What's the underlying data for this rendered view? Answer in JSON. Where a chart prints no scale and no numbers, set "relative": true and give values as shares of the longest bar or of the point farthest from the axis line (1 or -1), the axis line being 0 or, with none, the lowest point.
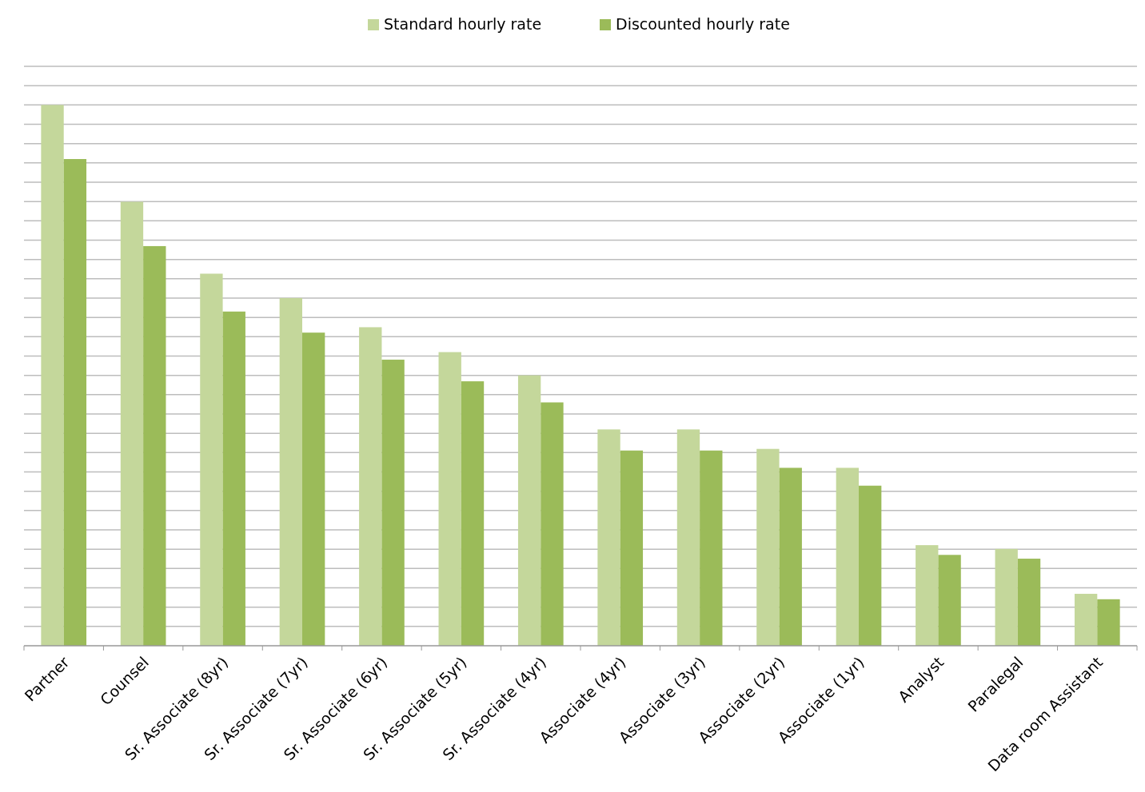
{
  "chart_data": {
    "type": "bar",
    "relative": true,
    "grid": "y",
    "legend": "top",
    "categories": [
      "Partner",
      "Counsel",
      "Sr. Associate (8yr)",
      "Sr. Associate (7yr)",
      "Sr. Associate (6yr)",
      "Sr. Associate (5yr)",
      "Sr. Associate (4yr)",
      "Associate (4yr)",
      "Associate (3yr)",
      "Associate (2yr)",
      "Associate (1yr)",
      "Analyst",
      "Paralegal",
      "Data room Assistant"
    ],
    "series": [
      {
        "name": "Standard hourly rate",
        "color": "#c4d79b",
        "values": [
          1,
          0.821,
          0.688,
          0.643,
          0.589,
          0.543,
          0.5,
          0.4,
          0.4,
          0.364,
          0.329,
          0.186,
          0.179,
          0.096
        ]
      },
      {
        "name": "Discounted hourly rate",
        "color": "#9bbb59",
        "values": [
          0.9,
          0.739,
          0.618,
          0.579,
          0.529,
          0.489,
          0.45,
          0.361,
          0.361,
          0.329,
          0.296,
          0.168,
          0.161,
          0.086
        ]
      }
    ]
  }
}
